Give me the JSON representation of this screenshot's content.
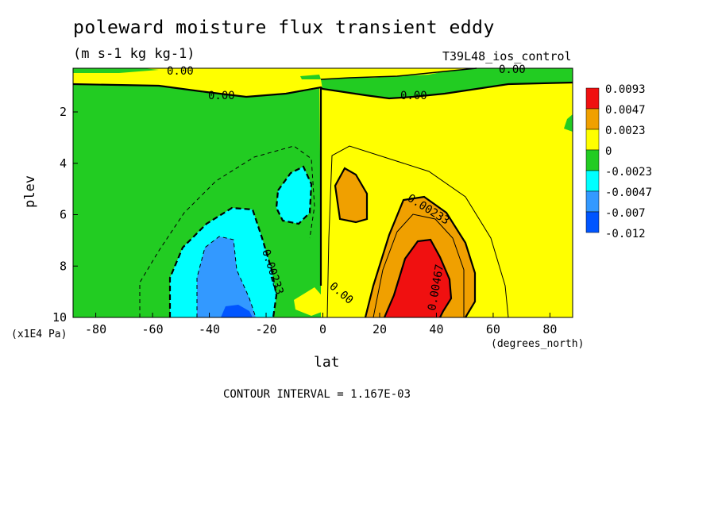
{
  "chart_data": {
    "type": "heatmap",
    "title": "poleward moisture flux transient eddy",
    "units": "(m s-1 kg kg-1)",
    "run_label": "T39L48_ios_control",
    "xlabel": "lat",
    "x_units": "(degrees_north)",
    "ylabel": "plev",
    "y_units": "(x1E4 Pa)",
    "xlim": [
      -88,
      88
    ],
    "ylim": [
      10,
      0.3
    ],
    "x_ticks": [
      "-80",
      "-60",
      "-40",
      "-20",
      "0",
      "20",
      "40",
      "60",
      "80"
    ],
    "y_ticks": [
      "2",
      "4",
      "6",
      "8",
      "10"
    ],
    "contour_interval_text": "CONTOUR INTERVAL = 1.167E-03",
    "contour_labels": [
      "0.00",
      "0.00",
      "0.00",
      "0.00",
      "0.00233",
      "0.00467",
      "0.00",
      "0.00233"
    ],
    "legend": {
      "labels": [
        "0.0093",
        "0.0047",
        "0.0023",
        "0",
        "-0.0023",
        "-0.0047",
        "-0.007",
        "-0.012"
      ],
      "colors": [
        "#f01010",
        "#f0a000",
        "#ffff00",
        "#22cc22",
        "#00ffff",
        "#3399ff",
        "#0055ff",
        "#0000ff"
      ]
    },
    "colors": {
      "red": "#f01010",
      "orange": "#f0a000",
      "yellow": "#ffff00",
      "green": "#22cc22",
      "cyan": "#00ffff",
      "light_blue": "#3399ff",
      "blue": "#0055ff"
    }
  }
}
